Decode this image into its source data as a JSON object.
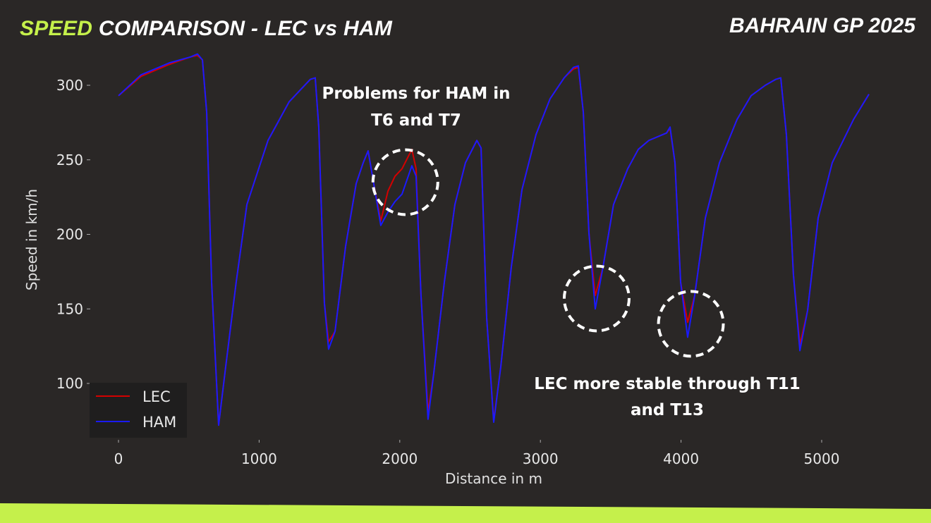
{
  "header": {
    "title_accent": "SPEED",
    "title_rest": " COMPARISON - LEC vs HAM",
    "event": "BAHRAIN GP 2025"
  },
  "colors": {
    "background": "#2a2726",
    "accent": "#c5f04b",
    "LEC": "#d40000",
    "HAM": "#1a1aff"
  },
  "chart_data": {
    "type": "line",
    "xlabel": "Distance in m",
    "ylabel": "Speed in km/h",
    "xlim": [
      -200,
      5580
    ],
    "ylim": [
      62,
      329
    ],
    "xticks": [
      0,
      1000,
      2000,
      3000,
      4000,
      5000
    ],
    "yticks": [
      100,
      150,
      200,
      250,
      300
    ],
    "grid": false,
    "legend": "bottom-left",
    "x": [
      0,
      160,
      361,
      512,
      562,
      597,
      627,
      662,
      712,
      762,
      837,
      913,
      1063,
      1214,
      1364,
      1399,
      1424,
      1464,
      1494,
      1540,
      1615,
      1690,
      1740,
      1775,
      1815,
      1865,
      1916,
      1966,
      2016,
      2086,
      2116,
      2151,
      2201,
      2242,
      2317,
      2392,
      2467,
      2548,
      2578,
      2618,
      2668,
      2718,
      2793,
      2869,
      2969,
      3069,
      3169,
      3235,
      3270,
      3305,
      3345,
      3390,
      3445,
      3520,
      3621,
      3696,
      3771,
      3897,
      3922,
      3957,
      3997,
      4047,
      4097,
      4173,
      4273,
      4398,
      4498,
      4599,
      4674,
      4709,
      4749,
      4799,
      4845,
      4900,
      4975,
      5075,
      5226,
      5336
    ],
    "series": [
      {
        "name": "LEC",
        "values": [
          293,
          306,
          314,
          319,
          320,
          317,
          282,
          168,
          72,
          111,
          168,
          220,
          263,
          289,
          304,
          305,
          272,
          154,
          128,
          135,
          192,
          234,
          248,
          256,
          234,
          209,
          229,
          239,
          244,
          257,
          244,
          159,
          81,
          107,
          168,
          220,
          248,
          263,
          258,
          144,
          75,
          111,
          178,
          230,
          267,
          291,
          305,
          311,
          312,
          282,
          201,
          159,
          178,
          220,
          244,
          257,
          263,
          268,
          271,
          248,
          168,
          141,
          159,
          211,
          248,
          277,
          293,
          300,
          304,
          305,
          267,
          173,
          126,
          149,
          211,
          248,
          277,
          294
        ]
      },
      {
        "name": "HAM",
        "values": [
          293,
          307,
          315,
          319,
          321,
          317,
          282,
          168,
          72,
          111,
          168,
          220,
          263,
          289,
          304,
          305,
          272,
          154,
          123,
          135,
          192,
          234,
          248,
          256,
          234,
          206,
          215,
          222,
          227,
          246,
          239,
          159,
          76,
          107,
          168,
          220,
          248,
          263,
          258,
          144,
          74,
          111,
          178,
          230,
          267,
          291,
          305,
          312,
          313,
          282,
          201,
          150,
          178,
          220,
          244,
          257,
          263,
          268,
          272,
          248,
          168,
          131,
          159,
          211,
          248,
          277,
          293,
          300,
          304,
          305,
          267,
          173,
          122,
          149,
          211,
          248,
          277,
          294
        ]
      }
    ],
    "annotations": [
      {
        "text_line1": "Problems for HAM in",
        "text_line2": "T6 and T7",
        "circle_center": [
          2040,
          235
        ]
      },
      {
        "text_line1": "LEC more stable through T11",
        "text_line2": "and T13",
        "circle_center": [
          3400,
          157
        ]
      },
      {
        "circle_center": [
          4070,
          140
        ]
      }
    ]
  }
}
